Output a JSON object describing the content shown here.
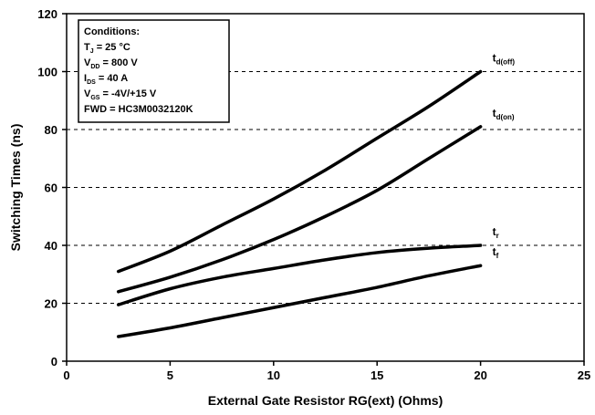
{
  "chart_data": {
    "type": "line",
    "xlabel": "External Gate Resistor RG(ext) (Ohms)",
    "ylabel": "Switching Times (ns)",
    "xlim": [
      0,
      25
    ],
    "ylim": [
      0,
      120
    ],
    "xticks": [
      0,
      5,
      10,
      15,
      20,
      25
    ],
    "yticks": [
      0,
      20,
      40,
      60,
      80,
      100,
      120
    ],
    "grid": "horizontal dashed",
    "line_color": "#000000",
    "annotation": {
      "title": "Conditions:",
      "lines": [
        {
          "main": "T",
          "sub": "J",
          "rest": " = 25 °C"
        },
        {
          "main": "V",
          "sub": "DD",
          "rest": " = 800 V"
        },
        {
          "main": "I",
          "sub": "DS",
          "rest": " = 40 A"
        },
        {
          "main": "V",
          "sub": "GS",
          "rest": " = -4V/+15 V"
        },
        {
          "main": "FWD = HC3M0032120K",
          "sub": "",
          "rest": ""
        }
      ]
    },
    "series": [
      {
        "name": "t",
        "sub": "d(off)",
        "x": [
          2.5,
          5,
          7.5,
          10,
          12.5,
          15,
          17.5,
          20
        ],
        "values": [
          31,
          38,
          47,
          56,
          66,
          77,
          88,
          100
        ]
      },
      {
        "name": "t",
        "sub": "d(on)",
        "x": [
          2.5,
          5,
          7.5,
          10,
          12.5,
          15,
          17.5,
          20
        ],
        "values": [
          24,
          29,
          35,
          42,
          50,
          59,
          70,
          81
        ]
      },
      {
        "name": "t",
        "sub": "r",
        "x": [
          2.5,
          5,
          7.5,
          10,
          12.5,
          15,
          17.5,
          20
        ],
        "values": [
          19.5,
          25,
          29,
          32,
          35,
          37.5,
          39,
          40
        ]
      },
      {
        "name": "t",
        "sub": "f",
        "x": [
          2.5,
          5,
          7.5,
          10,
          12.5,
          15,
          17.5,
          20
        ],
        "values": [
          8.5,
          11.5,
          15,
          18.5,
          22,
          25.5,
          29.5,
          33
        ]
      }
    ]
  }
}
